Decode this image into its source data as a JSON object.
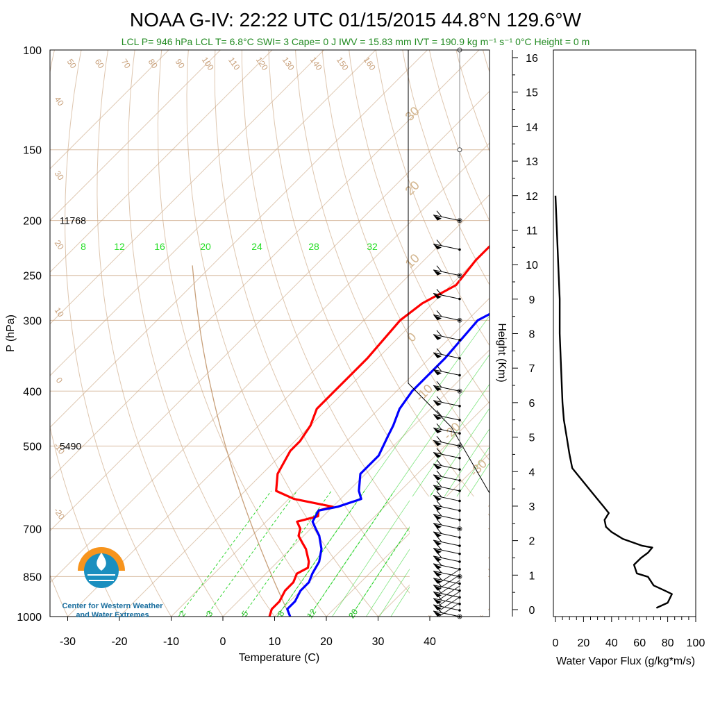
{
  "header": {
    "title": "NOAA G-IV: 22:22 UTC 01/15/2015  44.8°N 129.6°W",
    "subtitle": "LCL P= 946 hPa  LCL T= 6.8°C  SWI= 3  Cape= 0 J  IWV = 15.83 mm  IVT = 190.9 kg m⁻¹ s⁻¹  0°C Height = 0 m"
  },
  "logo": {
    "line1": "Center for Western Weather",
    "line2": "and Water Extremes"
  },
  "colors": {
    "temperature": "#ff0000",
    "dewpoint": "#0000ff",
    "mixing_ratio": "#00cc00",
    "dry_adiabat": "#c8a07a",
    "subtitle": "#228b22"
  },
  "chart_data": [
    {
      "type": "line",
      "name": "skew-t",
      "xlabel": "Temperature (C)",
      "ylabel": "P (hPa)",
      "xticks": [
        "-30",
        "-20",
        "-10",
        "0",
        "10",
        "20",
        "30",
        "40"
      ],
      "yticks": [
        "100",
        "150",
        "200",
        "250",
        "300",
        "400",
        "500",
        "700",
        "850",
        "1000"
      ],
      "ylim": [
        1000,
        100
      ],
      "height_labels": [
        {
          "p": 200,
          "text": "11768"
        },
        {
          "p": 500,
          "text": "5490"
        }
      ],
      "mixing_ratio_labels_top": [
        "8",
        "12",
        "16",
        "20",
        "24",
        "28",
        "32"
      ],
      "mixing_ratio_labels_bottom": [
        "2",
        "3",
        "5",
        "8",
        "12",
        "20"
      ],
      "adiabat_labels_top": [
        "50",
        "60",
        "70",
        "80",
        "90",
        "100",
        "110",
        "120",
        "130",
        "140",
        "150",
        "160"
      ],
      "adiabat_labels_left": [
        "40",
        "30",
        "20",
        "10",
        "0",
        "-10",
        "-20"
      ],
      "adiabat_labels_right": [
        "30",
        "20",
        "10",
        "0",
        "-10",
        "-20",
        "-30"
      ],
      "series": [
        {
          "name": "Temperature",
          "points": [
            [
              9,
              1000
            ],
            [
              8,
              970
            ],
            [
              8,
              940
            ],
            [
              7,
              900
            ],
            [
              7,
              870
            ],
            [
              6,
              840
            ],
            [
              7,
              820
            ],
            [
              6,
              800
            ],
            [
              3,
              760
            ],
            [
              1,
              740
            ],
            [
              -1,
              720
            ],
            [
              -2,
              700
            ],
            [
              -4,
              680
            ],
            [
              -1,
              665
            ],
            [
              -2,
              650
            ],
            [
              0,
              640
            ],
            [
              -9,
              620
            ],
            [
              -14,
              600
            ],
            [
              -17,
              560
            ],
            [
              -19,
              510
            ],
            [
              -19,
              490
            ],
            [
              -20,
              460
            ],
            [
              -22,
              430
            ],
            [
              -22,
              400
            ],
            [
              -22,
              350
            ],
            [
              -23,
              300
            ],
            [
              -22,
              280
            ],
            [
              -19,
              260
            ],
            [
              -20,
              235
            ],
            [
              -20,
              215
            ],
            [
              -19,
              200
            ],
            [
              -18,
              190
            ]
          ]
        },
        {
          "name": "Dew point",
          "points": [
            [
              13,
              1000
            ],
            [
              11,
              970
            ],
            [
              11,
              940
            ],
            [
              10,
              900
            ],
            [
              10,
              870
            ],
            [
              9,
              840
            ],
            [
              8,
              800
            ],
            [
              6,
              760
            ],
            [
              3,
              720
            ],
            [
              1,
              700
            ],
            [
              -1,
              680
            ],
            [
              -2,
              650
            ],
            [
              1,
              640
            ],
            [
              4,
              620
            ],
            [
              2,
              600
            ],
            [
              -1,
              560
            ],
            [
              -1,
              520
            ],
            [
              -3,
              480
            ],
            [
              -4,
              460
            ],
            [
              -6,
              430
            ],
            [
              -7,
              400
            ],
            [
              -7,
              350
            ],
            [
              -8,
              300
            ],
            [
              -5,
              280
            ],
            [
              -3,
              260
            ],
            [
              -3,
              235
            ],
            [
              -2,
              210
            ],
            [
              1,
              190
            ]
          ]
        }
      ],
      "wind_barb_pressures": [
        1000,
        975,
        950,
        925,
        900,
        875,
        850,
        825,
        800,
        775,
        750,
        725,
        700,
        675,
        650,
        625,
        600,
        575,
        550,
        525,
        500,
        475,
        450,
        425,
        400,
        375,
        350,
        325,
        300,
        275,
        250,
        225,
        200
      ]
    },
    {
      "type": "line",
      "name": "water-vapor-flux-profile",
      "xlabel": "Water Vapor Flux (g/kg*m/s)",
      "ylabel": "Height (Km)",
      "xticks": [
        "0",
        "20",
        "40",
        "60",
        "80",
        "100"
      ],
      "yticks": [
        "0",
        "1",
        "2",
        "3",
        "4",
        "5",
        "6",
        "7",
        "8",
        "9",
        "10",
        "11",
        "12",
        "13",
        "14",
        "15",
        "16"
      ],
      "xlim": [
        0,
        100
      ],
      "ylim": [
        0,
        16.2
      ],
      "series": [
        {
          "name": "Water Vapor Flux",
          "points": [
            [
              72,
              0.05
            ],
            [
              80,
              0.2
            ],
            [
              83,
              0.45
            ],
            [
              78,
              0.55
            ],
            [
              70,
              0.7
            ],
            [
              66,
              0.95
            ],
            [
              58,
              1.05
            ],
            [
              56,
              1.3
            ],
            [
              61,
              1.5
            ],
            [
              66,
              1.65
            ],
            [
              69,
              1.8
            ],
            [
              62,
              1.85
            ],
            [
              55,
              1.95
            ],
            [
              48,
              2.05
            ],
            [
              40,
              2.25
            ],
            [
              36,
              2.4
            ],
            [
              35,
              2.6
            ],
            [
              38,
              2.8
            ],
            [
              34,
              3.0
            ],
            [
              30,
              3.2
            ],
            [
              26,
              3.4
            ],
            [
              22,
              3.6
            ],
            [
              17,
              3.85
            ],
            [
              12,
              4.1
            ],
            [
              10,
              4.5
            ],
            [
              8,
              5.0
            ],
            [
              6,
              5.5
            ],
            [
              5,
              6.0
            ],
            [
              4,
              7.0
            ],
            [
              3,
              8.0
            ],
            [
              3,
              9.0
            ],
            [
              2,
              10.0
            ],
            [
              1,
              11.0
            ],
            [
              0,
              12.0
            ]
          ]
        }
      ]
    }
  ]
}
